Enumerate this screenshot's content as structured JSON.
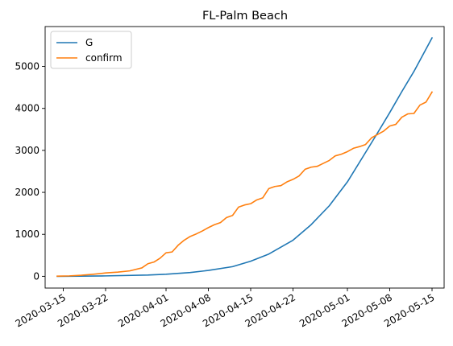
{
  "chart_data": {
    "type": "line",
    "title": "FL-Palm Beach",
    "xlabel": "",
    "ylabel": "",
    "legend_position": "top-left",
    "grid": false,
    "x_range": [
      "2020-03-12",
      "2020-05-17"
    ],
    "ylim": [
      -280,
      5950
    ],
    "x_ticks": [
      "2020-03-15",
      "2020-03-22",
      "2020-04-01",
      "2020-04-08",
      "2020-04-15",
      "2020-04-22",
      "2020-05-01",
      "2020-05-08",
      "2020-05-15"
    ],
    "y_ticks": [
      0,
      1000,
      2000,
      3000,
      4000,
      5000
    ],
    "series": [
      {
        "name": "G",
        "color": "#1f77b4",
        "points": [
          [
            "2020-03-14",
            0
          ],
          [
            "2020-03-22",
            10
          ],
          [
            "2020-03-29",
            30
          ],
          [
            "2020-04-01",
            50
          ],
          [
            "2020-04-05",
            90
          ],
          [
            "2020-04-08",
            140
          ],
          [
            "2020-04-12",
            230
          ],
          [
            "2020-04-15",
            360
          ],
          [
            "2020-04-18",
            530
          ],
          [
            "2020-04-22",
            860
          ],
          [
            "2020-04-25",
            1230
          ],
          [
            "2020-04-28",
            1680
          ],
          [
            "2020-05-01",
            2250
          ],
          [
            "2020-05-04",
            2950
          ],
          [
            "2020-05-06",
            3420
          ],
          [
            "2020-05-08",
            3900
          ],
          [
            "2020-05-10",
            4400
          ],
          [
            "2020-05-12",
            4880
          ],
          [
            "2020-05-15",
            5680
          ]
        ]
      },
      {
        "name": "confirm",
        "color": "#ff7f0e",
        "points": [
          [
            "2020-03-14",
            5
          ],
          [
            "2020-03-16",
            10
          ],
          [
            "2020-03-18",
            25
          ],
          [
            "2020-03-20",
            50
          ],
          [
            "2020-03-22",
            80
          ],
          [
            "2020-03-24",
            100
          ],
          [
            "2020-03-26",
            130
          ],
          [
            "2020-03-28",
            200
          ],
          [
            "2020-03-29",
            300
          ],
          [
            "2020-03-30",
            340
          ],
          [
            "2020-03-31",
            430
          ],
          [
            "2020-04-01",
            560
          ],
          [
            "2020-04-02",
            580
          ],
          [
            "2020-04-03",
            740
          ],
          [
            "2020-04-04",
            860
          ],
          [
            "2020-04-05",
            950
          ],
          [
            "2020-04-06",
            1010
          ],
          [
            "2020-04-07",
            1080
          ],
          [
            "2020-04-08",
            1160
          ],
          [
            "2020-04-09",
            1230
          ],
          [
            "2020-04-10",
            1280
          ],
          [
            "2020-04-11",
            1400
          ],
          [
            "2020-04-12",
            1450
          ],
          [
            "2020-04-13",
            1650
          ],
          [
            "2020-04-14",
            1700
          ],
          [
            "2020-04-15",
            1730
          ],
          [
            "2020-04-16",
            1820
          ],
          [
            "2020-04-17",
            1870
          ],
          [
            "2020-04-18",
            2090
          ],
          [
            "2020-04-19",
            2140
          ],
          [
            "2020-04-20",
            2160
          ],
          [
            "2020-04-21",
            2250
          ],
          [
            "2020-04-22",
            2310
          ],
          [
            "2020-04-23",
            2390
          ],
          [
            "2020-04-24",
            2550
          ],
          [
            "2020-04-25",
            2600
          ],
          [
            "2020-04-26",
            2620
          ],
          [
            "2020-04-27",
            2690
          ],
          [
            "2020-04-28",
            2760
          ],
          [
            "2020-04-29",
            2870
          ],
          [
            "2020-04-30",
            2910
          ],
          [
            "2020-05-01",
            2970
          ],
          [
            "2020-05-02",
            3050
          ],
          [
            "2020-05-03",
            3090
          ],
          [
            "2020-05-04",
            3140
          ],
          [
            "2020-05-05",
            3300
          ],
          [
            "2020-05-06",
            3380
          ],
          [
            "2020-05-07",
            3460
          ],
          [
            "2020-05-08",
            3580
          ],
          [
            "2020-05-09",
            3620
          ],
          [
            "2020-05-10",
            3790
          ],
          [
            "2020-05-11",
            3870
          ],
          [
            "2020-05-12",
            3880
          ],
          [
            "2020-05-13",
            4080
          ],
          [
            "2020-05-14",
            4150
          ],
          [
            "2020-05-15",
            4390
          ]
        ]
      }
    ]
  }
}
